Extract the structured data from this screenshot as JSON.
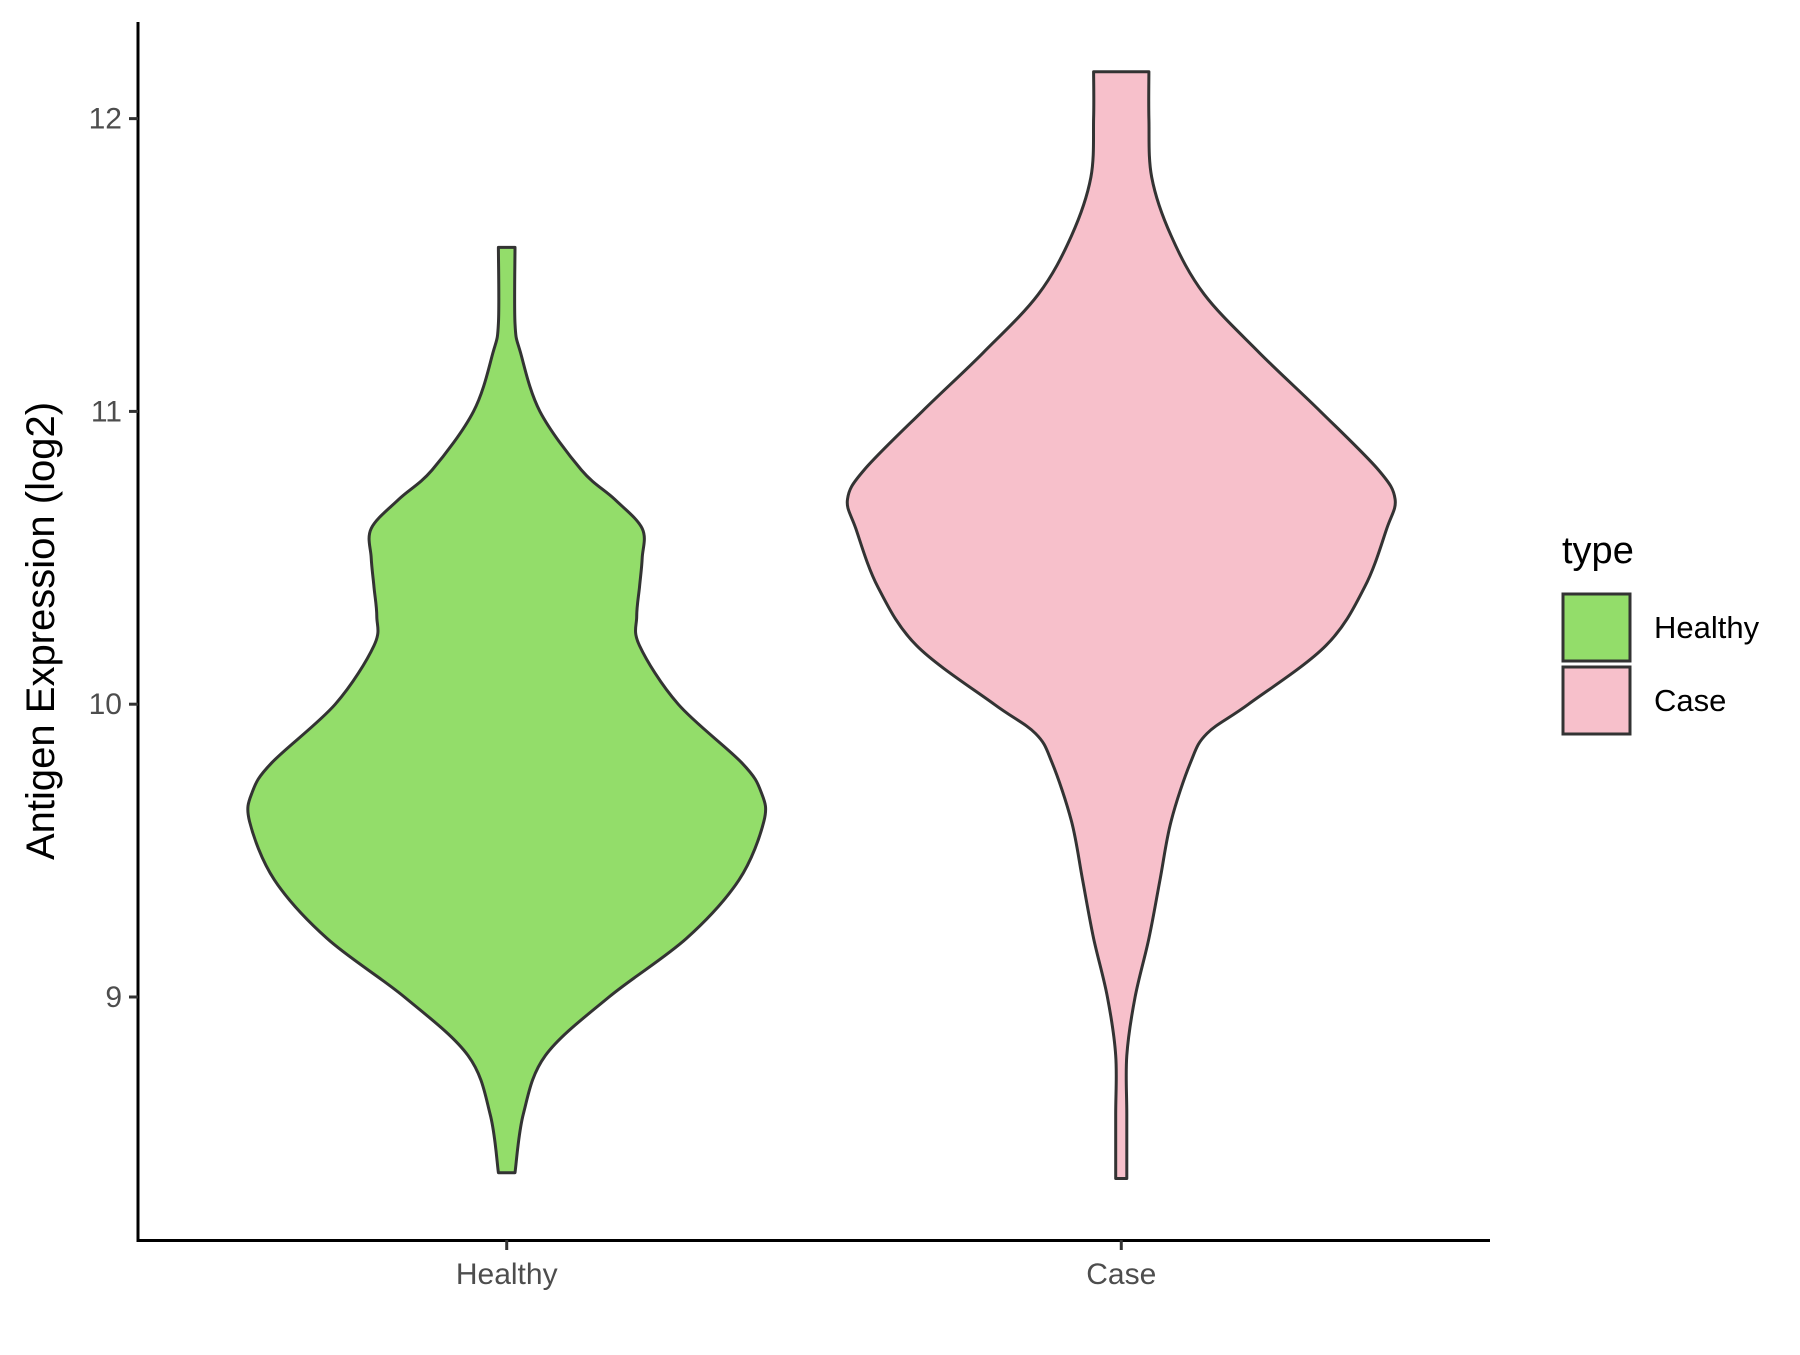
{
  "chart_data": {
    "type": "violin",
    "title": "",
    "xlabel": "",
    "ylabel": "Antigen Expression (log2)",
    "ylim": [
      8.17,
      12.33
    ],
    "y_ticks": [
      "9",
      "10",
      "11",
      "12"
    ],
    "y_tick_values": [
      9,
      10,
      11,
      12
    ],
    "categories": [
      "Healthy",
      "Case"
    ],
    "grid": false,
    "legend": {
      "title": "type",
      "position": "right",
      "entries": [
        "Healthy",
        "Case"
      ]
    },
    "series": [
      {
        "name": "Healthy",
        "color": "#93dd6a",
        "min": 8.4,
        "max": 11.56,
        "density": [
          [
            8.4,
            0.03
          ],
          [
            8.6,
            0.06
          ],
          [
            8.8,
            0.14
          ],
          [
            9.0,
            0.37
          ],
          [
            9.2,
            0.65
          ],
          [
            9.4,
            0.84
          ],
          [
            9.6,
            0.93
          ],
          [
            9.7,
            0.92
          ],
          [
            9.8,
            0.85
          ],
          [
            10.0,
            0.62
          ],
          [
            10.2,
            0.48
          ],
          [
            10.3,
            0.47
          ],
          [
            10.4,
            0.48
          ],
          [
            10.5,
            0.49
          ],
          [
            10.6,
            0.49
          ],
          [
            10.7,
            0.39
          ],
          [
            10.8,
            0.27
          ],
          [
            11.0,
            0.12
          ],
          [
            11.2,
            0.05
          ],
          [
            11.3,
            0.03
          ],
          [
            11.56,
            0.03
          ]
        ]
      },
      {
        "name": "Case",
        "color": "#f7c0cb",
        "min": 8.38,
        "max": 12.16,
        "density": [
          [
            8.38,
            0.02
          ],
          [
            8.6,
            0.02
          ],
          [
            8.8,
            0.02
          ],
          [
            9.0,
            0.05
          ],
          [
            9.2,
            0.1
          ],
          [
            9.4,
            0.14
          ],
          [
            9.6,
            0.18
          ],
          [
            9.8,
            0.25
          ],
          [
            9.9,
            0.31
          ],
          [
            10.0,
            0.46
          ],
          [
            10.2,
            0.74
          ],
          [
            10.4,
            0.88
          ],
          [
            10.6,
            0.96
          ],
          [
            10.7,
            0.99
          ],
          [
            10.8,
            0.93
          ],
          [
            11.0,
            0.72
          ],
          [
            11.2,
            0.5
          ],
          [
            11.4,
            0.3
          ],
          [
            11.6,
            0.18
          ],
          [
            11.8,
            0.11
          ],
          [
            12.0,
            0.1
          ],
          [
            12.16,
            0.1
          ]
        ]
      }
    ]
  }
}
